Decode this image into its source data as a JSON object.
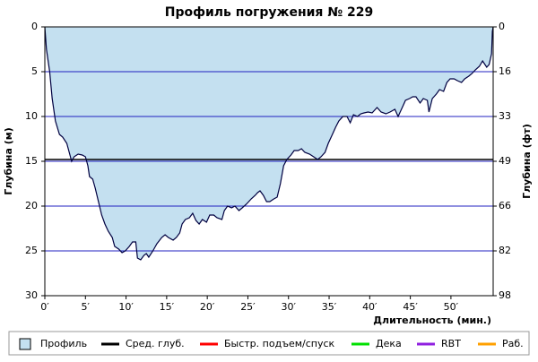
{
  "chart_data": {
    "type": "area",
    "title": "Профиль погружения № 229",
    "xlabel": "Длительность (мин.)",
    "ylabel": "Глубина (м)",
    "y2label": "Глубина (фт)",
    "xlim": [
      0,
      55.2
    ],
    "ylim": [
      30,
      0
    ],
    "y2lim": [
      98.4,
      0
    ],
    "xticks": [
      {
        "value": 0,
        "label": "0′"
      },
      {
        "value": 5,
        "label": "5′"
      },
      {
        "value": 10,
        "label": "10′"
      },
      {
        "value": 15,
        "label": "15′"
      },
      {
        "value": 20,
        "label": "20′"
      },
      {
        "value": 25,
        "label": "25′"
      },
      {
        "value": 30,
        "label": "30′"
      },
      {
        "value": 35,
        "label": "35′"
      },
      {
        "value": 40,
        "label": "40′"
      },
      {
        "value": 45,
        "label": "45′"
      },
      {
        "value": 50,
        "label": "50′"
      }
    ],
    "yticks": [
      0,
      5,
      10,
      15,
      20,
      25,
      30
    ],
    "y2ticks": [
      0,
      {
        "value": 16.4,
        "label": "16"
      },
      {
        "value": 32.8,
        "label": "33"
      },
      {
        "value": 49.2,
        "label": "49"
      },
      {
        "value": 65.6,
        "label": "66"
      },
      82,
      {
        "value": 98.4,
        "label": "98"
      }
    ],
    "grid": true,
    "grid_color": "#2020c0",
    "x": [
      0,
      0.2,
      0.6,
      0.9,
      1.3,
      1.8,
      2.2,
      2.7,
      3.0,
      3.3,
      3.6,
      4.1,
      4.6,
      5.0,
      5.3,
      5.5,
      5.9,
      6.2,
      6.6,
      7.0,
      7.4,
      7.8,
      8.3,
      8.6,
      9.1,
      9.5,
      9.9,
      10.4,
      10.8,
      11.2,
      11.4,
      11.8,
      12.2,
      12.5,
      12.8,
      13.3,
      13.8,
      14.4,
      14.8,
      15.2,
      15.8,
      16.2,
      16.6,
      16.9,
      17.3,
      17.8,
      18.2,
      18.6,
      19.0,
      19.4,
      19.9,
      20.3,
      20.8,
      21.2,
      21.8,
      22.1,
      22.5,
      23.0,
      23.4,
      23.9,
      24.3,
      24.8,
      25.1,
      25.4,
      25.9,
      26.2,
      26.5,
      26.9,
      27.3,
      27.7,
      28.2,
      28.6,
      29.0,
      29.4,
      29.8,
      30.3,
      30.7,
      31.2,
      31.6,
      32.0,
      32.6,
      33.1,
      33.6,
      34.0,
      34.5,
      34.9,
      35.4,
      35.8,
      36.2,
      36.7,
      37.2,
      37.6,
      38.0,
      38.5,
      38.9,
      39.3,
      39.8,
      40.3,
      40.9,
      41.4,
      42.0,
      42.5,
      43.1,
      43.5,
      44.0,
      44.4,
      44.9,
      45.3,
      45.7,
      46.2,
      46.6,
      47.1,
      47.3,
      47.7,
      48.2,
      48.6,
      49.1,
      49.5,
      49.9,
      50.4,
      50.8,
      51.3,
      51.7,
      52.2,
      52.6,
      53.0,
      53.5,
      53.9,
      54.4,
      54.7,
      55.0,
      55.1,
      55.2
    ],
    "series": [
      {
        "name": "Профиль",
        "color": "#c4e0f0",
        "line_color": "#000040",
        "values": [
          0,
          2.5,
          5.0,
          8.0,
          10.5,
          12.0,
          12.3,
          13.0,
          14.0,
          15.0,
          14.5,
          14.2,
          14.3,
          14.5,
          15.5,
          16.7,
          17.0,
          18.0,
          19.5,
          21.0,
          22.0,
          22.8,
          23.5,
          24.5,
          24.8,
          25.2,
          25.0,
          24.5,
          24.0,
          24.0,
          25.8,
          26.0,
          25.5,
          25.3,
          25.7,
          25.0,
          24.2,
          23.5,
          23.2,
          23.5,
          23.8,
          23.5,
          23.0,
          22.0,
          21.5,
          21.3,
          20.8,
          21.6,
          22.0,
          21.5,
          21.8,
          21.0,
          21.0,
          21.3,
          21.5,
          20.5,
          20.0,
          20.2,
          20.0,
          20.5,
          20.2,
          19.8,
          19.5,
          19.2,
          18.8,
          18.5,
          18.3,
          18.8,
          19.5,
          19.5,
          19.2,
          19.0,
          17.5,
          15.5,
          14.8,
          14.3,
          13.8,
          13.8,
          13.6,
          14.0,
          14.2,
          14.5,
          14.8,
          14.5,
          14.0,
          13.0,
          12.0,
          11.2,
          10.5,
          10.0,
          10.0,
          10.7,
          9.8,
          10.0,
          9.7,
          9.6,
          9.5,
          9.6,
          9.0,
          9.5,
          9.7,
          9.5,
          9.2,
          10.0,
          9.0,
          8.2,
          8.0,
          7.8,
          7.8,
          8.5,
          8.0,
          8.2,
          9.5,
          8.0,
          7.5,
          7.0,
          7.2,
          6.2,
          5.8,
          5.8,
          6.0,
          6.2,
          5.8,
          5.5,
          5.2,
          4.8,
          4.4,
          3.8,
          4.5,
          4.2,
          3.0,
          0.5,
          0
        ]
      }
    ],
    "avg_depth": {
      "name": "Сред. глуб.",
      "value": 14.8,
      "color": "#000000"
    },
    "legend_items": [
      {
        "name": "Быстр. подъем/спуск",
        "color": "#ff0000"
      },
      {
        "name": "Дека",
        "color": "#00e000"
      },
      {
        "name": "RBT",
        "color": "#9020e0"
      },
      {
        "name": "Раб.",
        "color": "#ffa000"
      }
    ]
  }
}
